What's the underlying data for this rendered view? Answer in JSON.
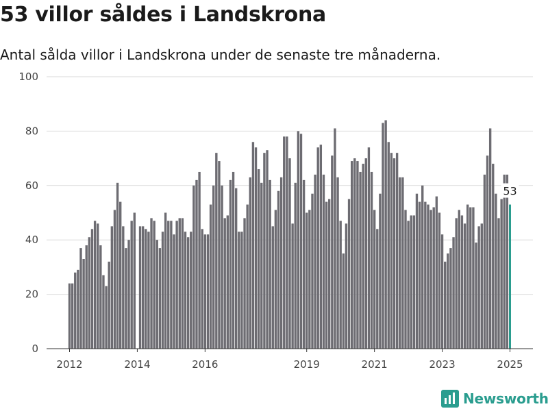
{
  "title": "53 villor såldes i Landskrona",
  "subtitle": "Antal sålda villor i Landskrona under de senaste tre månaderna.",
  "brand": {
    "name": "Newsworthy",
    "icon": "newsworthy-logo-icon",
    "color": "#2a9d8f"
  },
  "colors": {
    "bar": "#6d6c72",
    "highlight": "#2a9d8f",
    "grid": "#d9d9d9",
    "axis": "#333333"
  },
  "chart_data": {
    "type": "bar",
    "title": "53 villor såldes i Landskrona",
    "subtitle": "Antal sålda villor i Landskrona under de senaste tre månaderna.",
    "xlabel": "",
    "ylabel": "",
    "ylim": [
      0,
      100
    ],
    "y_ticks": [
      0,
      20,
      40,
      60,
      80,
      100
    ],
    "x_ticks": [
      {
        "label": "2012",
        "year": 2012
      },
      {
        "label": "2014",
        "year": 2014
      },
      {
        "label": "2016",
        "year": 2016
      },
      {
        "label": "2019",
        "year": 2019
      },
      {
        "label": "2021",
        "year": 2021
      },
      {
        "label": "2023",
        "year": 2023
      },
      {
        "label": "2025",
        "year": 2025
      }
    ],
    "grid": true,
    "frequency": "monthly",
    "start": "2012-01",
    "end": "2025-01",
    "values": [
      24,
      24,
      28,
      29,
      37,
      33,
      38,
      41,
      44,
      47,
      46,
      38,
      27,
      23,
      32,
      45,
      51,
      61,
      54,
      45,
      37,
      40,
      47,
      50,
      0,
      45,
      45,
      44,
      43,
      48,
      47,
      40,
      37,
      43,
      50,
      47,
      47,
      42,
      47,
      48,
      48,
      43,
      41,
      43,
      60,
      62,
      65,
      44,
      42,
      42,
      53,
      60,
      72,
      69,
      60,
      48,
      49,
      62,
      65,
      59,
      43,
      43,
      48,
      53,
      63,
      76,
      74,
      66,
      61,
      72,
      73,
      62,
      45,
      51,
      58,
      63,
      78,
      78,
      70,
      46,
      61,
      80,
      79,
      62,
      50,
      51,
      57,
      64,
      74,
      75,
      64,
      54,
      55,
      71,
      81,
      63,
      47,
      35,
      46,
      55,
      69,
      70,
      69,
      65,
      68,
      70,
      74,
      65,
      51,
      44,
      57,
      83,
      84,
      76,
      72,
      70,
      72,
      63,
      63,
      51,
      47,
      49,
      49,
      57,
      54,
      60,
      54,
      53,
      51,
      52,
      56,
      50,
      42,
      32,
      35,
      37,
      41,
      48,
      51,
      49,
      46,
      53,
      52,
      52,
      39,
      45,
      46,
      64,
      71,
      81,
      68,
      57,
      48,
      55,
      64,
      64,
      53
    ],
    "highlight": {
      "index": 156,
      "value": 53,
      "label": "53"
    }
  }
}
